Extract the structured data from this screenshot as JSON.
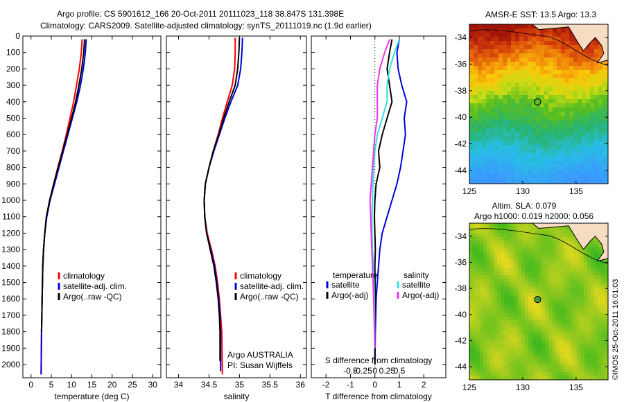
{
  "header": {
    "line1": "Argo profile: CS 5901612_166 20-Oct-2011 20111023_118 38.847S 131.398E",
    "line2": "Climatology: CARS2009. Satellite-adjusted climatology: synTS_20111019.nc (1.9d earlier)"
  },
  "colors": {
    "climatology": "#ff0000",
    "satellite": "#0000dd",
    "argo": "#000000",
    "sal_satellite": "#33e0e0",
    "sal_argo": "#ee33ee"
  },
  "side_text": "©IMOS 25-Oct-2011 16:01:03",
  "chart_data": [
    {
      "id": "temperature",
      "type": "line",
      "xlabel": "temperature (deg C)",
      "ylabel": "",
      "xlim": [
        -2,
        32
      ],
      "ylim": [
        2080,
        0
      ],
      "xticks": [
        0,
        5,
        10,
        15,
        20,
        25,
        30
      ],
      "yticks": [
        0,
        100,
        200,
        300,
        400,
        500,
        600,
        700,
        800,
        900,
        1000,
        1100,
        1200,
        1300,
        1400,
        1500,
        1600,
        1700,
        1800,
        1900,
        2000
      ],
      "legend": [
        "climatology",
        "satellite-adj. clim.",
        "Argo(..raw -QC)"
      ],
      "series": [
        {
          "name": "climatology",
          "color": "#ff0000",
          "x": [
            12.6,
            12.4,
            11.9,
            11.2,
            10.5,
            9.6,
            8.7,
            7.7,
            6.6,
            5.6,
            4.6,
            3.8,
            3.4,
            3.1,
            2.9,
            2.75,
            2.6,
            2.5
          ],
          "y": [
            20,
            100,
            200,
            300,
            400,
            500,
            600,
            700,
            800,
            900,
            1000,
            1100,
            1200,
            1300,
            1400,
            1600,
            1800,
            2060
          ]
        },
        {
          "name": "satellite-adj. clim.",
          "color": "#0000dd",
          "x": [
            13.6,
            13.4,
            12.9,
            12.2,
            11.3,
            10.2,
            9.1,
            8.0,
            6.9,
            5.8,
            4.7,
            3.9,
            3.4,
            3.1,
            2.9,
            2.75,
            2.6,
            2.5
          ],
          "y": [
            20,
            100,
            200,
            300,
            400,
            500,
            600,
            700,
            800,
            900,
            1000,
            1100,
            1200,
            1300,
            1400,
            1600,
            1800,
            2060
          ]
        },
        {
          "name": "Argo(..raw -QC)",
          "color": "#000000",
          "x": [
            13.2,
            13.0,
            12.5,
            11.8,
            11.0,
            10.0,
            8.9,
            7.8,
            6.7,
            5.6,
            4.6,
            3.8,
            3.4,
            3.1,
            2.9,
            2.75,
            2.6
          ],
          "y": [
            20,
            100,
            200,
            300,
            400,
            500,
            600,
            700,
            800,
            900,
            1000,
            1100,
            1200,
            1300,
            1400,
            1600,
            1800
          ]
        }
      ]
    },
    {
      "id": "salinity",
      "type": "line",
      "xlabel": "salinity",
      "ylabel": "",
      "xlim": [
        33.8,
        36.1
      ],
      "ylim": [
        2080,
        0
      ],
      "xticks": [
        34,
        34.5,
        35,
        35.5,
        36
      ],
      "legend": [
        "climatology",
        "satellite-adj. clim.",
        "Argo(..raw -QC)"
      ],
      "annotation": [
        "Argo AUSTRALIA",
        "PI: Susan Wijffels"
      ],
      "series": [
        {
          "name": "climatology",
          "color": "#ff0000",
          "x": [
            34.93,
            34.93,
            34.92,
            34.88,
            34.8,
            34.72,
            34.65,
            34.57,
            34.5,
            34.44,
            34.42,
            34.43,
            34.47,
            34.54,
            34.6,
            34.64,
            34.67,
            34.69,
            34.71,
            34.72
          ],
          "y": [
            10,
            100,
            200,
            300,
            400,
            500,
            600,
            700,
            800,
            900,
            1000,
            1100,
            1200,
            1300,
            1400,
            1500,
            1600,
            1700,
            1800,
            2060
          ]
        },
        {
          "name": "satellite-adj. clim.",
          "color": "#0000dd",
          "x": [
            35.05,
            35.04,
            35.02,
            34.97,
            34.86,
            34.76,
            34.67,
            34.58,
            34.5,
            34.44,
            34.42,
            34.43,
            34.46,
            34.53,
            34.59,
            34.63,
            34.66,
            34.68,
            34.69,
            34.69
          ],
          "y": [
            10,
            100,
            200,
            300,
            400,
            500,
            600,
            700,
            800,
            900,
            1000,
            1100,
            1200,
            1300,
            1400,
            1500,
            1600,
            1700,
            1800,
            2040
          ]
        },
        {
          "name": "Argo(..raw -QC)",
          "color": "#000000",
          "x": [
            35.0,
            34.99,
            34.97,
            34.93,
            34.83,
            34.74,
            34.66,
            34.57,
            34.5,
            34.44,
            34.42,
            34.43,
            34.46,
            34.52,
            34.58,
            34.62,
            34.65,
            34.67,
            34.68,
            34.68
          ],
          "y": [
            10,
            100,
            200,
            300,
            400,
            500,
            600,
            700,
            800,
            900,
            1000,
            1100,
            1200,
            1300,
            1400,
            1500,
            1600,
            1700,
            1800,
            1980
          ]
        }
      ]
    },
    {
      "id": "difference",
      "type": "line",
      "xlabel": "T difference from climatology",
      "ylabel": "",
      "xlim": [
        -2.6,
        2.9
      ],
      "ylim": [
        2080,
        0
      ],
      "xticks": [
        -2,
        -1,
        0,
        1,
        2
      ],
      "xticks_top_label": "S difference from climatology",
      "xticks_secondary": [
        "-0.5",
        "-0.25",
        "0",
        "0.25",
        "0.5"
      ],
      "legend_left": {
        "title": "temperature",
        "items": [
          "satellite",
          "Argo(-adj)"
        ]
      },
      "legend_right": {
        "title": "salinity",
        "items": [
          "satellite",
          "Argo(-adj)"
        ]
      },
      "series": [
        {
          "name": "temperature satellite",
          "color": "#0000dd",
          "x": [
            1.0,
            0.9,
            0.95,
            1.1,
            1.3,
            1.2,
            1.25,
            1.15,
            1.05,
            0.9,
            0.7,
            0.5,
            0.3,
            0.2,
            0.15,
            0.1,
            0.05,
            0.02,
            0.0
          ],
          "y": [
            20,
            100,
            200,
            300,
            400,
            500,
            600,
            700,
            800,
            900,
            1000,
            1100,
            1200,
            1300,
            1400,
            1500,
            1600,
            1800,
            2000
          ]
        },
        {
          "name": "temperature Argo(-adj)",
          "color": "#000000",
          "x": [
            0.7,
            0.6,
            0.5,
            0.6,
            0.7,
            0.5,
            0.3,
            0.15,
            0.2,
            0.05,
            0.0,
            -0.02,
            0.0,
            0.02,
            0.0,
            0.02,
            0.0,
            0.0
          ],
          "y": [
            20,
            100,
            200,
            300,
            400,
            500,
            600,
            700,
            800,
            900,
            1000,
            1100,
            1200,
            1300,
            1400,
            1600,
            1800,
            2000
          ]
        },
        {
          "name": "salinity satellite",
          "color": "#33e0e0",
          "x": [
            1.0,
            0.8,
            0.6,
            0.5,
            0.5,
            0.3,
            0.1,
            0.0,
            -0.05,
            -0.08,
            -0.1,
            -0.12,
            -0.12,
            -0.1,
            -0.05,
            -0.02,
            0.0
          ],
          "y": [
            20,
            100,
            200,
            300,
            400,
            500,
            600,
            700,
            800,
            900,
            1000,
            1100,
            1200,
            1300,
            1400,
            1600,
            1900
          ]
        },
        {
          "name": "salinity Argo(-adj)",
          "color": "#ee33ee",
          "x": [
            0.6,
            0.4,
            0.2,
            0.1,
            0.1,
            0.1,
            0.0,
            -0.05,
            -0.1,
            -0.15,
            -0.2,
            -0.15,
            -0.1,
            -0.05,
            0.0
          ],
          "y": [
            20,
            100,
            200,
            300,
            400,
            500,
            600,
            700,
            800,
            900,
            1000,
            1200,
            1400,
            1600,
            1900
          ]
        }
      ]
    },
    {
      "id": "sst_map",
      "type": "heatmap",
      "title": "AMSR-E SST: 13.5 Argo: 13.3",
      "xlim": [
        125,
        138
      ],
      "ylim": [
        -45,
        -33
      ],
      "xticks": [
        125,
        130,
        135
      ],
      "yticks": [
        -34,
        -36,
        -38,
        -40,
        -42,
        -44
      ],
      "marker": {
        "lon": 131.398,
        "lat": -38.847
      }
    },
    {
      "id": "sla_map",
      "type": "heatmap",
      "title_lines": [
        "Altim. SLA: 0.079",
        "Argo h1000: 0.019 h2000: 0.056"
      ],
      "xlim": [
        125,
        138
      ],
      "ylim": [
        -45,
        -33
      ],
      "xticks": [
        125,
        130,
        135
      ],
      "yticks": [
        -34,
        -36,
        -38,
        -40,
        -42,
        -44
      ],
      "marker": {
        "lon": 131.398,
        "lat": -38.847
      }
    }
  ]
}
